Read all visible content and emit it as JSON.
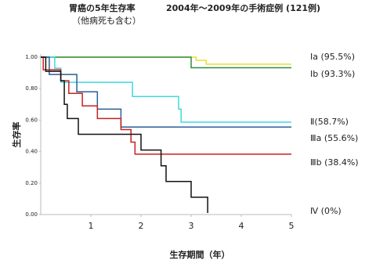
{
  "chart_data": {
    "type": "step",
    "title": "胃癌の5年生存率",
    "subtitle": "2004年～2009年の手術症例 (121例)",
    "note": "（他病死も含む）",
    "x_label": "生存期間（年）",
    "y_label": "生存率",
    "xlim": [
      0,
      5
    ],
    "ylim": [
      0,
      1
    ],
    "xticks": [
      1,
      2,
      3,
      4,
      5
    ],
    "yticks": [
      {
        "value": 0,
        "label": "0.00"
      },
      {
        "value": 0.2,
        "label": "0.20"
      },
      {
        "value": 0.4,
        "label": "0.40"
      },
      {
        "value": 0.6,
        "label": "0.60"
      },
      {
        "value": 0.8,
        "label": "0.80"
      },
      {
        "value": 1,
        "label": "1.00"
      }
    ],
    "series": [
      {
        "name": "Ⅰa (95.5%)",
        "color": "#e8e030",
        "x": [
          0,
          3.1,
          3.3,
          5
        ],
        "values": [
          1.0,
          0.98,
          0.955,
          0.955
        ]
      },
      {
        "name": "Ⅰb (93.3%)",
        "color": "#2e8b3e",
        "x": [
          0,
          3.0,
          5
        ],
        "values": [
          1.0,
          0.933,
          0.933
        ]
      },
      {
        "name": "Ⅱ(58.7%)",
        "color": "#40d8e0",
        "x": [
          0,
          0.28,
          0.4,
          1.83,
          2.75,
          2.8,
          5
        ],
        "values": [
          1.0,
          0.93,
          0.84,
          0.75,
          0.67,
          0.587,
          0.587
        ]
      },
      {
        "name": "Ⅲa (55.6%)",
        "color": "#2a5f96",
        "x": [
          0,
          0.17,
          0.72,
          1.13,
          1.6,
          5
        ],
        "values": [
          1.0,
          0.89,
          0.78,
          0.67,
          0.556,
          0.556
        ]
      },
      {
        "name": "Ⅲb (38.4%)",
        "color": "#c82020",
        "x": [
          0,
          0.05,
          0.4,
          0.56,
          0.83,
          1.13,
          1.6,
          1.8,
          1.88,
          5
        ],
        "values": [
          1.0,
          0.92,
          0.85,
          0.77,
          0.69,
          0.61,
          0.54,
          0.46,
          0.384,
          0.384
        ]
      },
      {
        "name": "Ⅳ (0%)",
        "color": "#111111",
        "x": [
          0,
          0.1,
          0.4,
          0.47,
          0.53,
          0.75,
          2.0,
          2.4,
          2.5,
          3.0,
          3.33
        ],
        "values": [
          1.0,
          0.91,
          0.85,
          0.7,
          0.61,
          0.51,
          0.41,
          0.31,
          0.21,
          0.11,
          0.01
        ]
      }
    ]
  }
}
